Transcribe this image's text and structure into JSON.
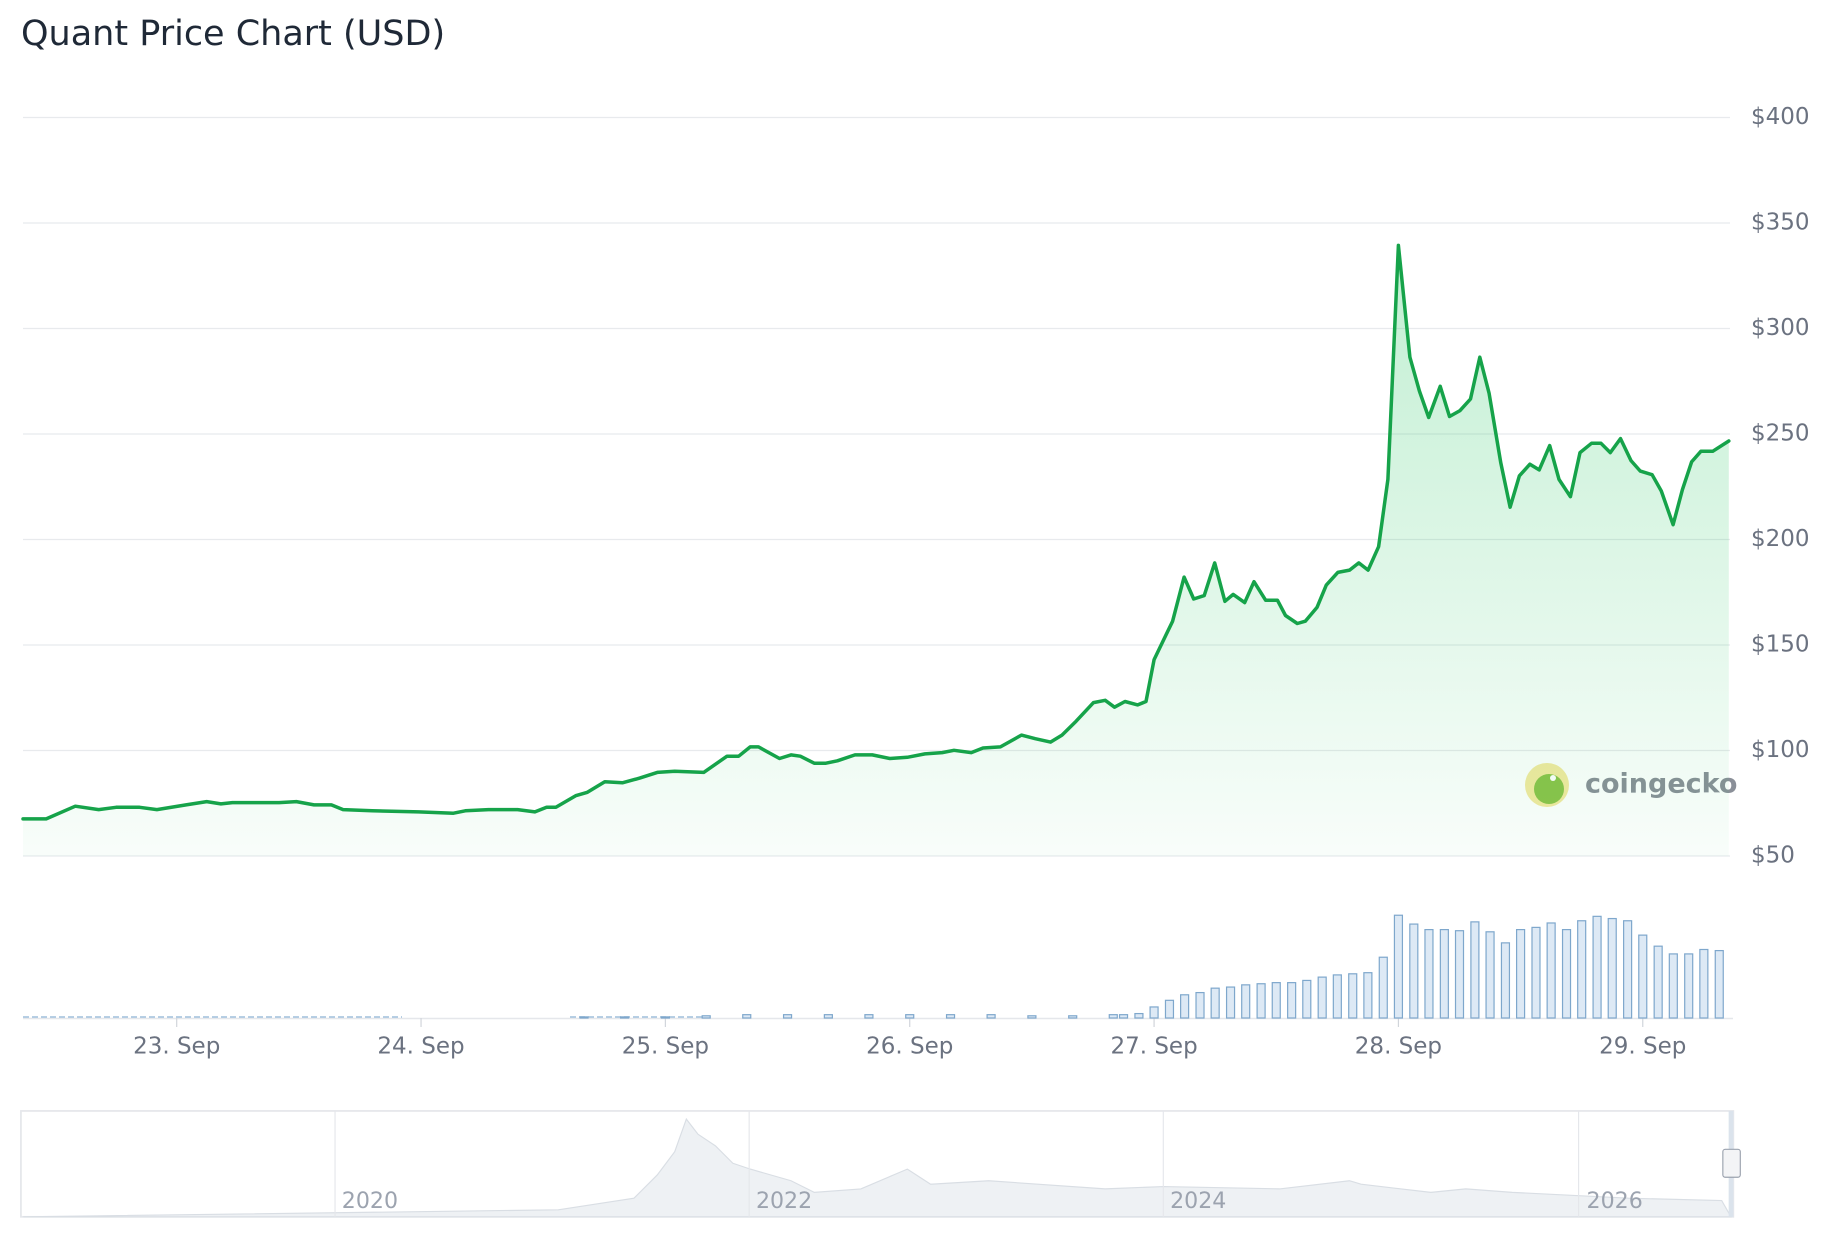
{
  "chart_data": {
    "type": "line",
    "title": "Quant Price Chart (USD)",
    "xlim": [
      22.371,
      29.357
    ],
    "xticks": [
      {
        "value": 23,
        "label": "23. Sep"
      },
      {
        "value": 24,
        "label": "24. Sep"
      },
      {
        "value": 25,
        "label": "25. Sep"
      },
      {
        "value": 26,
        "label": "26. Sep"
      },
      {
        "value": 27,
        "label": "27. Sep"
      },
      {
        "value": 28,
        "label": "28. Sep"
      },
      {
        "value": 29,
        "label": "29. Sep"
      }
    ],
    "ylim": [
      50,
      400
    ],
    "yticks": [
      {
        "value": 400,
        "label": "$400"
      },
      {
        "value": 350,
        "label": "$350"
      },
      {
        "value": 300,
        "label": "$300"
      },
      {
        "value": 250,
        "label": "$250"
      },
      {
        "value": 200,
        "label": "$200"
      },
      {
        "value": 150,
        "label": "$150"
      },
      {
        "value": 100,
        "label": "$100"
      },
      {
        "value": 50,
        "label": "$50"
      }
    ],
    "y2lim": [
      0,
      100
    ],
    "grid": true,
    "series": [
      {
        "type": "line",
        "color": "#16a34a",
        "x": [
          22.371,
          22.466,
          22.585,
          22.681,
          22.752,
          22.848,
          22.919,
          23.038,
          23.123,
          23.181,
          23.228,
          23.419,
          23.49,
          23.562,
          23.633,
          23.681,
          23.8,
          23.99,
          24.133,
          24.181,
          24.276,
          24.395,
          24.466,
          24.514,
          24.552,
          24.633,
          24.681,
          24.752,
          24.824,
          24.895,
          24.967,
          25.038,
          25.157,
          25.252,
          25.3,
          25.347,
          25.381,
          25.467,
          25.514,
          25.552,
          25.609,
          25.657,
          25.704,
          25.776,
          25.847,
          25.919,
          25.99,
          26.062,
          26.133,
          26.181,
          26.252,
          26.3,
          26.371,
          26.457,
          26.514,
          26.576,
          26.623,
          26.681,
          26.752,
          26.8,
          26.838,
          26.881,
          26.933,
          26.967,
          27.0,
          27.076,
          27.123,
          27.162,
          27.205,
          27.248,
          27.29,
          27.324,
          27.371,
          27.409,
          27.457,
          27.505,
          27.538,
          27.586,
          27.619,
          27.667,
          27.705,
          27.752,
          27.8,
          27.838,
          27.876,
          27.919,
          27.957,
          28.0,
          28.047,
          28.086,
          28.124,
          28.171,
          28.209,
          28.252,
          28.295,
          28.333,
          28.371,
          28.419,
          28.457,
          28.495,
          28.538,
          28.576,
          28.619,
          28.657,
          28.704,
          28.743,
          28.79,
          28.829,
          28.867,
          28.909,
          28.952,
          28.99,
          29.038,
          29.076,
          29.124,
          29.162,
          29.2,
          29.238,
          29.286,
          29.352
        ],
        "values": [
          67.6,
          67.6,
          73.6,
          72,
          73.1,
          73.1,
          72,
          74.2,
          75.8,
          74.7,
          75.3,
          75.3,
          75.8,
          74.2,
          74.2,
          72,
          71.4,
          70.9,
          70.3,
          71.4,
          72,
          72,
          70.9,
          73.1,
          73.1,
          78.6,
          80.2,
          85.2,
          84.7,
          86.9,
          89.6,
          90.2,
          89.6,
          97.3,
          97.3,
          101.7,
          101.7,
          96.2,
          97.9,
          97.3,
          94,
          94,
          95.1,
          97.9,
          97.9,
          96.2,
          96.8,
          98.4,
          99,
          100.1,
          99,
          101.2,
          101.7,
          107.3,
          105.6,
          104,
          107.3,
          113.9,
          122.7,
          123.8,
          120.5,
          123.2,
          121.6,
          123.2,
          143.1,
          161.3,
          182.2,
          171.8,
          173.4,
          188.9,
          170.7,
          174,
          170.1,
          180,
          171.2,
          171.2,
          164,
          160.2,
          161.3,
          167.9,
          178.4,
          184.4,
          185.5,
          188.9,
          185.5,
          196.6,
          228.5,
          339.4,
          286.4,
          270.4,
          257.8,
          272.6,
          258.3,
          261.1,
          266.6,
          286.4,
          269.3,
          236.3,
          215.3,
          230.2,
          235.7,
          233,
          244.5,
          228.5,
          220.3,
          241.2,
          245.6,
          245.6,
          241.2,
          247.8,
          237.4,
          232.4,
          230.7,
          223,
          207,
          223.6,
          236.8,
          241.8,
          241.8,
          246.7
        ]
      },
      {
        "type": "bar",
        "axis": "y2",
        "color": "#7ea7cc",
        "x": [
          24.667,
          24.833,
          25.0,
          25.167,
          25.333,
          25.5,
          25.667,
          25.833,
          26.0,
          26.167,
          26.333,
          26.5,
          26.667,
          26.833,
          26.875,
          26.938,
          27.0,
          27.063,
          27.125,
          27.188,
          27.25,
          27.313,
          27.375,
          27.438,
          27.5,
          27.563,
          27.625,
          27.688,
          27.75,
          27.813,
          27.875,
          27.938,
          28.0,
          28.063,
          28.125,
          28.188,
          28.25,
          28.313,
          28.375,
          28.438,
          28.5,
          28.563,
          28.625,
          28.688,
          28.75,
          28.813,
          28.875,
          28.938,
          29.0,
          29.063,
          29.125,
          29.188,
          29.25,
          29.313
        ],
        "values": [
          1,
          1,
          1,
          2,
          3,
          3,
          3,
          3,
          3,
          3,
          3,
          2,
          2,
          3,
          3,
          4,
          10,
          16,
          21,
          23,
          27,
          28,
          30,
          31,
          32,
          32,
          34,
          37,
          39,
          40,
          41,
          55,
          93,
          85,
          80,
          80,
          79,
          87,
          78,
          68,
          80,
          82,
          86,
          80,
          88,
          92,
          90,
          88,
          75,
          65,
          58,
          58,
          62,
          61
        ]
      }
    ],
    "watermark": "coingecko"
  },
  "navigator": {
    "labels": [
      "2020",
      "2022",
      "2024",
      "2026"
    ]
  }
}
